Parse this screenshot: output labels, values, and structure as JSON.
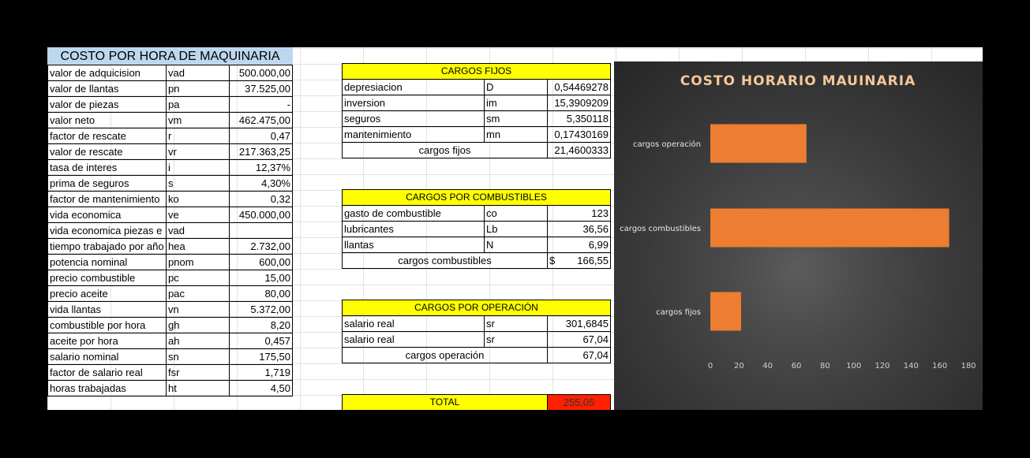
{
  "left_table": {
    "title": "COSTO POR HORA DE MAQUINARIA",
    "rows": [
      {
        "label": "valor de adquicision",
        "code": "vad",
        "value": "500.000,00"
      },
      {
        "label": "valor de llantas",
        "code": "pn",
        "value": "37.525,00"
      },
      {
        "label": "valor de piezas",
        "code": "pa",
        "value": "-"
      },
      {
        "label": "valor neto",
        "code": "vm",
        "value": "462.475,00"
      },
      {
        "label": "factor de rescate",
        "code": "r",
        "value": "0,47"
      },
      {
        "label": "valor de rescate",
        "code": "vr",
        "value": "217.363,25"
      },
      {
        "label": "tasa de interes",
        "code": "i",
        "value": "12,37%"
      },
      {
        "label": "prima de seguros",
        "code": "s",
        "value": "4,30%"
      },
      {
        "label": "factor de mantenimiento",
        "code": "ko",
        "value": "0,32"
      },
      {
        "label": "vida economica",
        "code": "ve",
        "value": "450.000,00"
      },
      {
        "label": "vida economica piezas e",
        "code": "vad",
        "value": ""
      },
      {
        "label": "tiempo trabajado por año",
        "code": "hea",
        "value": "2.732,00"
      },
      {
        "label": "potencia nominal",
        "code": "pnom",
        "value": "600,00"
      },
      {
        "label": "precio combustible",
        "code": "pc",
        "value": "15,00"
      },
      {
        "label": "precio aceite",
        "code": "pac",
        "value": "80,00"
      },
      {
        "label": "vida llantas",
        "code": "vn",
        "value": "5.372,00"
      },
      {
        "label": "combustible por hora",
        "code": "gh",
        "value": "8,20"
      },
      {
        "label": "aceite por hora",
        "code": "ah",
        "value": "0,457"
      },
      {
        "label": "salario nominal",
        "code": "sn",
        "value": "175,50"
      },
      {
        "label": "factor de salario real",
        "code": "fsr",
        "value": "1,719"
      },
      {
        "label": "horas trabajadas",
        "code": "ht",
        "value": "4,50"
      }
    ]
  },
  "cargos_fijos": {
    "title": "CARGOS FIJOS",
    "rows": [
      {
        "label": "depresiacion",
        "code": "D",
        "value": "0,54469278"
      },
      {
        "label": "inversion",
        "code": "im",
        "value": "15,3909209"
      },
      {
        "label": "seguros",
        "code": "sm",
        "value": "5,350118"
      },
      {
        "label": "mantenimiento",
        "code": "mn",
        "value": "0,17430169"
      }
    ],
    "total_label": "cargos fijos",
    "total_value": "21,4600333"
  },
  "cargos_combustibles": {
    "title": "CARGOS POR COMBUSTIBLES",
    "rows": [
      {
        "label": "gasto de combustible",
        "code": "co",
        "value": "123"
      },
      {
        "label": "lubricantes",
        "code": "Lb",
        "value": "36,56"
      },
      {
        "label": "llantas",
        "code": "N",
        "value": "6,99"
      }
    ],
    "total_label": "cargos combustibles",
    "total_currency": "$",
    "total_value": "166,55"
  },
  "cargos_operacion": {
    "title": "CARGOS POR OPERACIÓN",
    "rows": [
      {
        "label": "salario real",
        "code": "sr",
        "value": "301,6845"
      },
      {
        "label": "salario real",
        "code": "sr",
        "value": "67,04"
      }
    ],
    "total_label": "cargos operación",
    "total_value": "67,04"
  },
  "total": {
    "label": "TOTAL",
    "value": "255,05"
  },
  "chart_data": {
    "type": "bar",
    "orientation": "horizontal",
    "title": "COSTO HORARIO MAUINARIA",
    "categories": [
      "cargos operación",
      "cargos combustibles",
      "cargos fijos"
    ],
    "values": [
      67.04,
      166.55,
      21.46
    ],
    "xlim": [
      0,
      180
    ],
    "xticks": [
      0,
      20,
      40,
      60,
      80,
      100,
      120,
      140,
      160,
      180
    ],
    "bar_color": "#ed7d31",
    "title_color": "#f5c79a",
    "grid": false,
    "legend": "none"
  }
}
